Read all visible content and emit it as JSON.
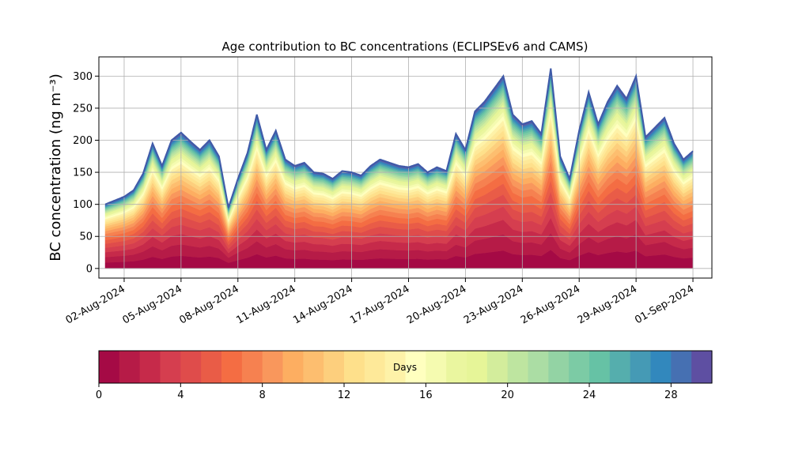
{
  "chart_data": {
    "type": "area",
    "title": "Age contribution to BC concentrations (ECLIPSEv6 and CAMS)",
    "ylabel": "BC concentration (ng m⁻³)",
    "ylim": [
      -15,
      330
    ],
    "yticks": [
      0,
      50,
      100,
      150,
      200,
      250,
      300
    ],
    "xlim": [
      "2024-07-31T16:00",
      "2024-09-02T00:00"
    ],
    "xticks": [
      "02-Aug-2024",
      "05-Aug-2024",
      "08-Aug-2024",
      "11-Aug-2024",
      "14-Aug-2024",
      "17-Aug-2024",
      "20-Aug-2024",
      "23-Aug-2024",
      "26-Aug-2024",
      "29-Aug-2024",
      "01-Sep-2024"
    ],
    "grid": true,
    "stack_order": "age 0 days at bottom to 30 days at top",
    "total": {
      "dates": [
        "2024-08-01T00:00",
        "2024-08-01T12:00",
        "2024-08-02T00:00",
        "2024-08-02T12:00",
        "2024-08-03T00:00",
        "2024-08-03T12:00",
        "2024-08-04T00:00",
        "2024-08-04T12:00",
        "2024-08-05T00:00",
        "2024-08-05T12:00",
        "2024-08-06T00:00",
        "2024-08-06T12:00",
        "2024-08-07T00:00",
        "2024-08-07T12:00",
        "2024-08-08T00:00",
        "2024-08-08T12:00",
        "2024-08-09T00:00",
        "2024-08-09T12:00",
        "2024-08-10T00:00",
        "2024-08-10T12:00",
        "2024-08-11T00:00",
        "2024-08-11T12:00",
        "2024-08-12T00:00",
        "2024-08-12T12:00",
        "2024-08-13T00:00",
        "2024-08-13T12:00",
        "2024-08-14T00:00",
        "2024-08-14T12:00",
        "2024-08-15T00:00",
        "2024-08-15T12:00",
        "2024-08-16T00:00",
        "2024-08-16T12:00",
        "2024-08-17T00:00",
        "2024-08-17T12:00",
        "2024-08-18T00:00",
        "2024-08-18T12:00",
        "2024-08-19T00:00",
        "2024-08-19T12:00",
        "2024-08-20T00:00",
        "2024-08-20T12:00",
        "2024-08-21T00:00",
        "2024-08-21T12:00",
        "2024-08-22T00:00",
        "2024-08-22T12:00",
        "2024-08-23T00:00",
        "2024-08-23T12:00",
        "2024-08-24T00:00",
        "2024-08-24T12:00",
        "2024-08-25T00:00",
        "2024-08-25T12:00",
        "2024-08-26T00:00",
        "2024-08-26T12:00",
        "2024-08-27T00:00",
        "2024-08-27T12:00",
        "2024-08-28T00:00",
        "2024-08-28T12:00",
        "2024-08-29T00:00",
        "2024-08-29T12:00",
        "2024-08-30T00:00",
        "2024-08-30T12:00",
        "2024-08-31T00:00",
        "2024-08-31T12:00",
        "2024-09-01T00:00"
      ],
      "values": [
        100,
        106,
        112,
        122,
        148,
        195,
        160,
        200,
        212,
        198,
        185,
        200,
        175,
        95,
        140,
        180,
        240,
        185,
        215,
        170,
        160,
        165,
        150,
        148,
        140,
        152,
        150,
        145,
        160,
        170,
        165,
        160,
        158,
        163,
        150,
        158,
        152,
        210,
        185,
        245,
        260,
        280,
        300,
        240,
        225,
        230,
        210,
        312,
        175,
        140,
        215,
        275,
        225,
        260,
        285,
        265,
        300,
        205,
        220,
        235,
        195,
        170,
        183
      ]
    },
    "color_scale": {
      "label": "Days",
      "range": [
        0,
        30
      ],
      "ticks": [
        0,
        4,
        8,
        12,
        16,
        20,
        24,
        28
      ],
      "colors": [
        "#a50a45",
        "#b61b47",
        "#c62a4a",
        "#d53e4f",
        "#df4c4b",
        "#e95c47",
        "#f46d43",
        "#f68150",
        "#f9975c",
        "#fdae61",
        "#fdbe6f",
        "#fdcf7d",
        "#fee08b",
        "#fee999",
        "#fef2a8",
        "#ffffbf",
        "#f5fbb0",
        "#eaf69f",
        "#e6f598",
        "#d3ed9c",
        "#bee5a0",
        "#abdda4",
        "#93d3a4",
        "#7ccba5",
        "#66c2a5",
        "#55aead",
        "#459ab5",
        "#3288bd",
        "#4670b2",
        "#5e4fa2"
      ]
    }
  }
}
